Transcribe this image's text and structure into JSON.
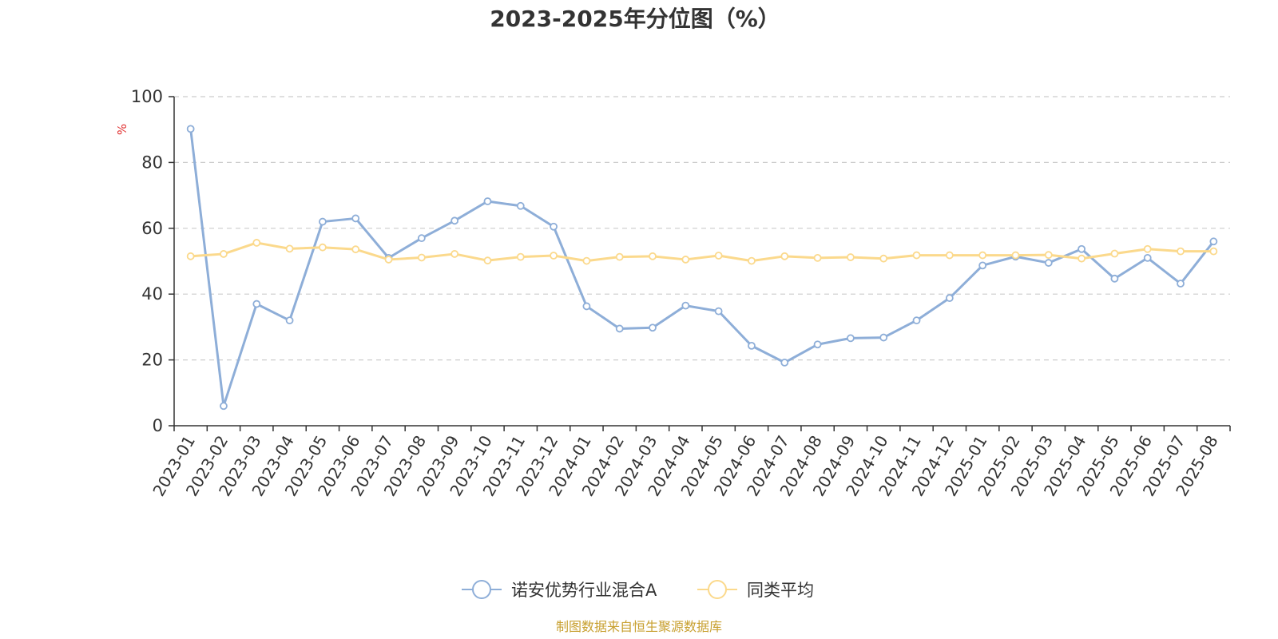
{
  "chart_data": {
    "type": "line",
    "title": "2023-2025年分位图（%）",
    "ylabel": "%",
    "ylim": [
      0,
      100
    ],
    "yticks": [
      0,
      20,
      40,
      60,
      80,
      100
    ],
    "grid": true,
    "legend_position": "bottom-center",
    "categories": [
      "2023-01",
      "2023-02",
      "2023-03",
      "2023-04",
      "2023-05",
      "2023-06",
      "2023-07",
      "2023-08",
      "2023-09",
      "2023-10",
      "2023-11",
      "2023-12",
      "2024-01",
      "2024-02",
      "2024-03",
      "2024-04",
      "2024-05",
      "2024-06",
      "2024-07",
      "2024-08",
      "2024-09",
      "2024-10",
      "2024-11",
      "2024-12",
      "2025-01",
      "2025-02",
      "2025-03",
      "2025-04",
      "2025-05",
      "2025-06",
      "2025-07",
      "2025-08"
    ],
    "series": [
      {
        "name": "诺安优势行业混合A",
        "color": "#8eaed8",
        "values": [
          90.2,
          6.0,
          37.0,
          32.0,
          62.0,
          63.0,
          51.0,
          57.0,
          62.3,
          68.2,
          66.8,
          60.5,
          36.3,
          29.5,
          29.8,
          36.5,
          34.8,
          24.3,
          19.2,
          24.7,
          26.6,
          26.8,
          32.0,
          38.8,
          48.7,
          51.4,
          49.5,
          53.7,
          44.7,
          51.0,
          43.2,
          56.0
        ]
      },
      {
        "name": "同类平均",
        "color": "#fbd98c",
        "values": [
          51.5,
          52.2,
          55.6,
          53.8,
          54.2,
          53.6,
          50.5,
          51.1,
          52.2,
          50.2,
          51.3,
          51.7,
          50.1,
          51.3,
          51.5,
          50.5,
          51.7,
          50.1,
          51.5,
          51.0,
          51.2,
          50.8,
          51.8,
          51.8,
          51.8,
          51.8,
          51.9,
          50.8,
          52.3,
          53.7,
          53.0,
          53.0
        ]
      }
    ]
  },
  "source_text": "制图数据来自恒生聚源数据库",
  "colors": {
    "axis": "#333333",
    "grid": "#cccccc",
    "unit": "#e03030",
    "source": "#c8a030"
  }
}
